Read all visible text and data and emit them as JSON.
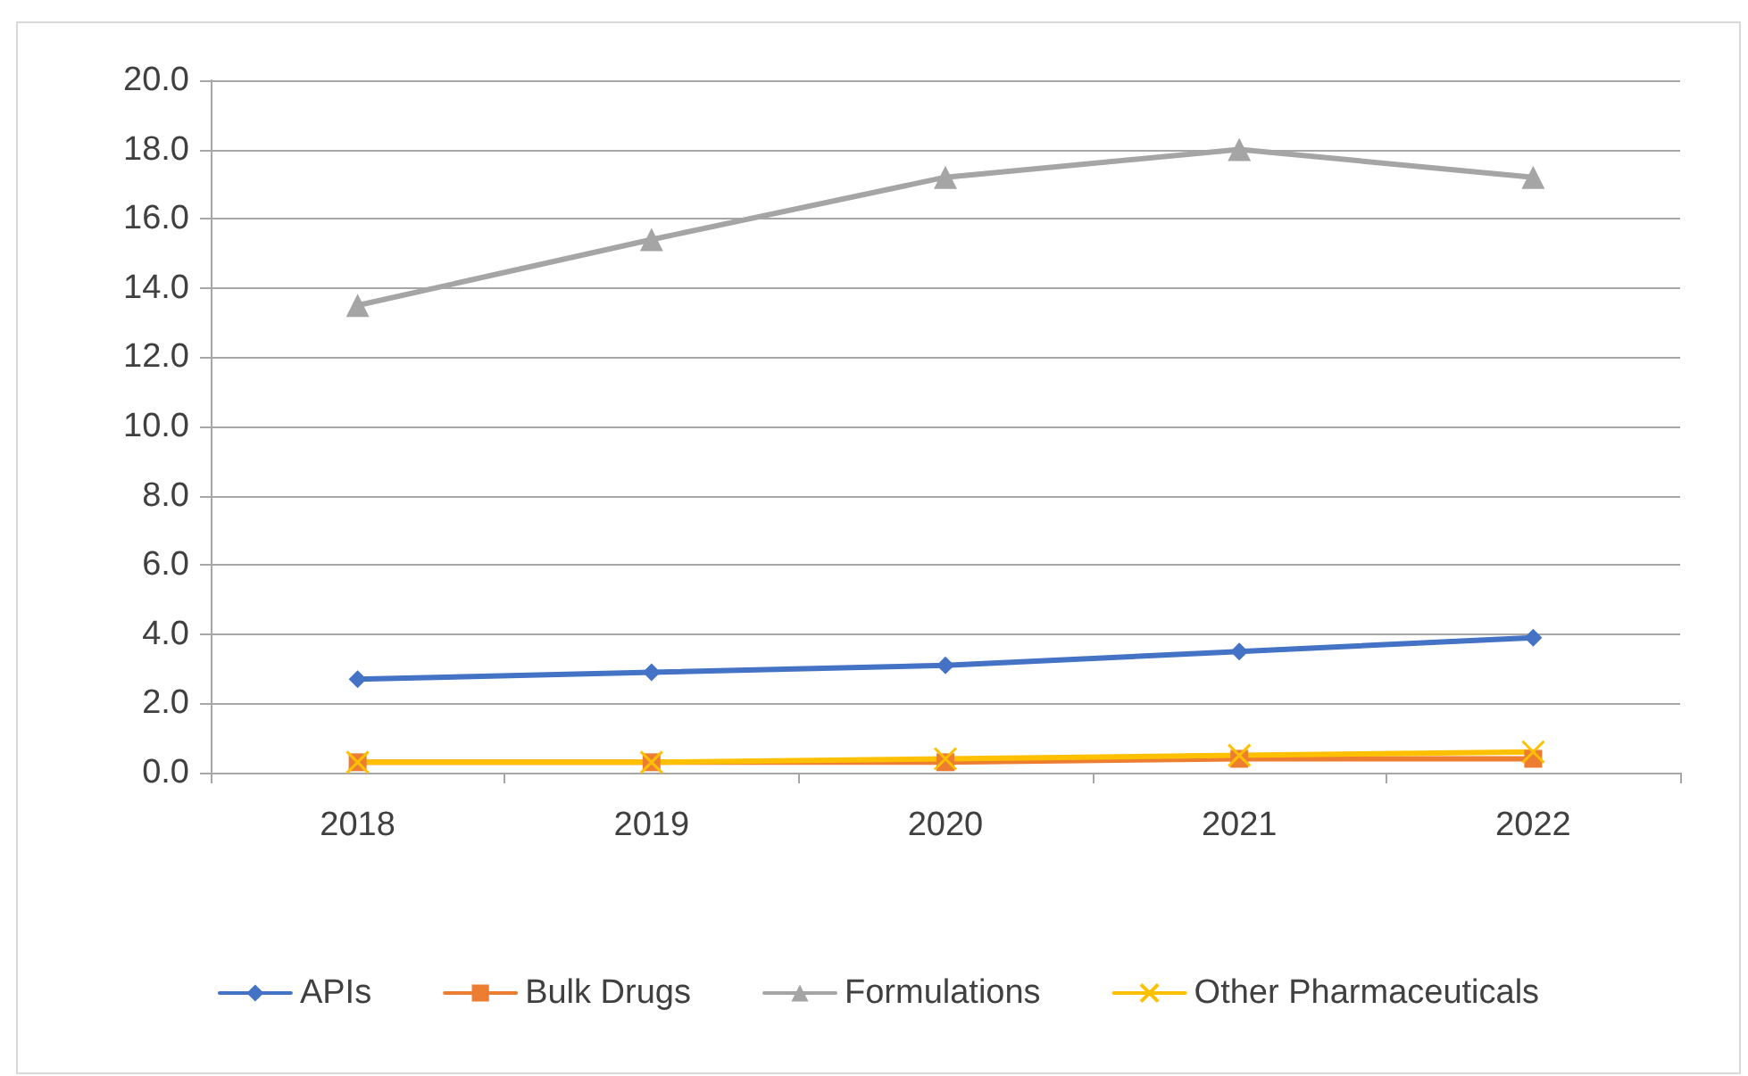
{
  "chart_data": {
    "type": "line",
    "categories": [
      "2018",
      "2019",
      "2020",
      "2021",
      "2022"
    ],
    "series": [
      {
        "name": "APIs",
        "color": "#4472c4",
        "marker": "diamond",
        "values": [
          2.7,
          2.9,
          3.1,
          3.5,
          3.9
        ]
      },
      {
        "name": "Bulk Drugs",
        "color": "#ed7d31",
        "marker": "square",
        "values": [
          0.3,
          0.3,
          0.3,
          0.4,
          0.4
        ]
      },
      {
        "name": "Formulations",
        "color": "#a5a5a5",
        "marker": "triangle",
        "values": [
          13.5,
          15.4,
          17.2,
          18.0,
          17.2
        ]
      },
      {
        "name": "Other Pharmaceuticals",
        "color": "#ffc000",
        "marker": "cross",
        "values": [
          0.3,
          0.3,
          0.4,
          0.5,
          0.6
        ]
      }
    ],
    "ylim": [
      0,
      20
    ],
    "yticks": [
      {
        "value": 0,
        "label": "0.0"
      },
      {
        "value": 2,
        "label": "2.0"
      },
      {
        "value": 4,
        "label": "4.0"
      },
      {
        "value": 6,
        "label": "6.0"
      },
      {
        "value": 8,
        "label": "8.0"
      },
      {
        "value": 10,
        "label": "10.0"
      },
      {
        "value": 12,
        "label": "12.0"
      },
      {
        "value": 14,
        "label": "14.0"
      },
      {
        "value": 16,
        "label": "16.0"
      },
      {
        "value": 18,
        "label": "18.0"
      },
      {
        "value": 20,
        "label": "20.0"
      }
    ],
    "grid": "y",
    "legend": "bottom",
    "line_style": "solid"
  }
}
